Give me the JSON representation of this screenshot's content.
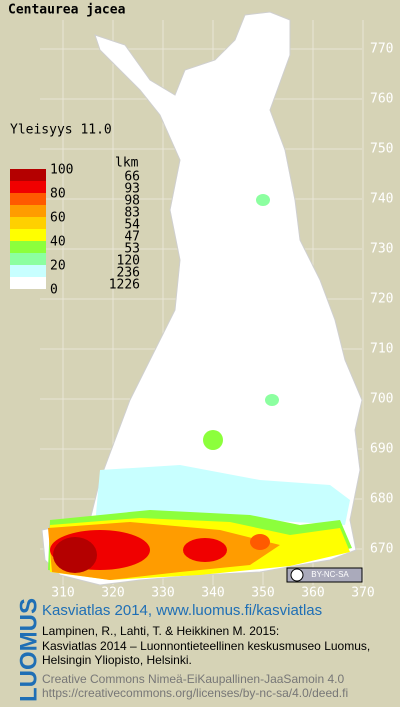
{
  "header": {
    "title": "Centaurea jacea",
    "frequency": "Yleisyys  11.0"
  },
  "legend": {
    "levels": [
      100,
      80,
      60,
      40,
      20,
      0
    ],
    "counts_header": "lkm",
    "counts": [
      66,
      93,
      98,
      83,
      54,
      47,
      53,
      120,
      236,
      1226
    ],
    "colors": [
      "#b40000",
      "#f00000",
      "#ff5a00",
      "#ff9c00",
      "#ffd000",
      "#ffff00",
      "#8cff3c",
      "#8cffa0",
      "#c8ffff",
      "#ffffff"
    ]
  },
  "grid": {
    "north": [
      770,
      760,
      750,
      740,
      730,
      720,
      710,
      700,
      690,
      680,
      670
    ],
    "east": [
      310,
      320,
      330,
      340,
      350,
      360,
      370
    ]
  },
  "license_badge": "BY-NC-SA",
  "footer": {
    "logo": "LUOMUS",
    "heading": "Kasviatlas 2014, www.luomus.fi/kasviatlas",
    "citation": [
      "Lampinen, R., Lahti, T. & Heikkinen M. 2015:",
      "Kasviatlas 2014 – Luonnontieteellinen keskusmuseo Luomus,",
      "Helsingin Yliopisto, Helsinki."
    ],
    "license": "Creative Commons Nimeä-EiKaupallinen-JaaSamoin 4.0",
    "license_url": "https://creativecommons.org/licenses/by-nc-sa/4.0/deed.fi"
  }
}
